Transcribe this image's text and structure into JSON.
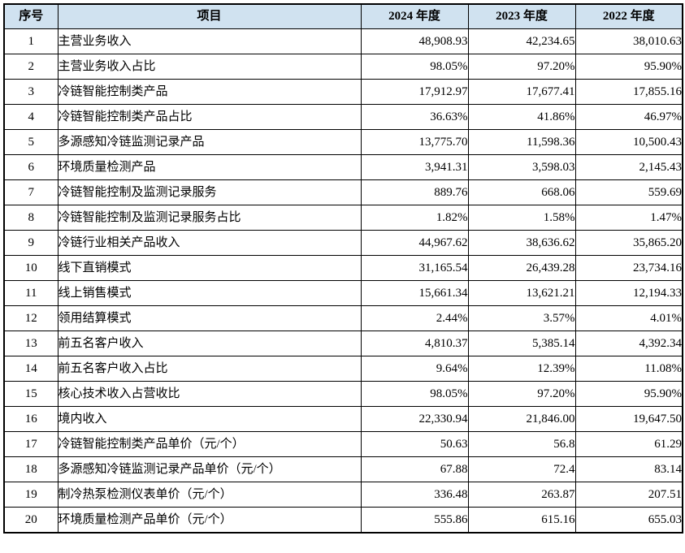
{
  "table": {
    "columns": [
      "序号",
      "项目",
      "2024 年度",
      "2023 年度",
      "2022 年度"
    ],
    "rows": [
      {
        "no": "1",
        "item": "主营业务收入",
        "y2024": "48,908.93",
        "y2023": "42,234.65",
        "y2022": "38,010.63"
      },
      {
        "no": "2",
        "item": "主营业务收入占比",
        "y2024": "98.05%",
        "y2023": "97.20%",
        "y2022": "95.90%"
      },
      {
        "no": "3",
        "item": "冷链智能控制类产品",
        "y2024": "17,912.97",
        "y2023": "17,677.41",
        "y2022": "17,855.16"
      },
      {
        "no": "4",
        "item": "冷链智能控制类产品占比",
        "y2024": "36.63%",
        "y2023": "41.86%",
        "y2022": "46.97%"
      },
      {
        "no": "5",
        "item": "多源感知冷链监测记录产品",
        "y2024": "13,775.70",
        "y2023": "11,598.36",
        "y2022": "10,500.43"
      },
      {
        "no": "6",
        "item": "环境质量检测产品",
        "y2024": "3,941.31",
        "y2023": "3,598.03",
        "y2022": "2,145.43"
      },
      {
        "no": "7",
        "item": "冷链智能控制及监测记录服务",
        "y2024": "889.76",
        "y2023": "668.06",
        "y2022": "559.69"
      },
      {
        "no": "8",
        "item": "冷链智能控制及监测记录服务占比",
        "y2024": "1.82%",
        "y2023": "1.58%",
        "y2022": "1.47%"
      },
      {
        "no": "9",
        "item": "冷链行业相关产品收入",
        "y2024": "44,967.62",
        "y2023": "38,636.62",
        "y2022": "35,865.20"
      },
      {
        "no": "10",
        "item": "线下直销模式",
        "y2024": "31,165.54",
        "y2023": "26,439.28",
        "y2022": "23,734.16"
      },
      {
        "no": "11",
        "item": "线上销售模式",
        "y2024": "15,661.34",
        "y2023": "13,621.21",
        "y2022": "12,194.33"
      },
      {
        "no": "12",
        "item": "领用结算模式",
        "y2024": "2.44%",
        "y2023": "3.57%",
        "y2022": "4.01%"
      },
      {
        "no": "13",
        "item": "前五名客户收入",
        "y2024": "4,810.37",
        "y2023": "5,385.14",
        "y2022": "4,392.34"
      },
      {
        "no": "14",
        "item": "前五名客户收入占比",
        "y2024": "9.64%",
        "y2023": "12.39%",
        "y2022": "11.08%"
      },
      {
        "no": "15",
        "item": "核心技术收入占营收比",
        "y2024": "98.05%",
        "y2023": "97.20%",
        "y2022": "95.90%"
      },
      {
        "no": "16",
        "item": "境内收入",
        "y2024": "22,330.94",
        "y2023": "21,846.00",
        "y2022": "19,647.50"
      },
      {
        "no": "17",
        "item": "冷链智能控制类产品单价（元/个）",
        "y2024": "50.63",
        "y2023": "56.8",
        "y2022": "61.29"
      },
      {
        "no": "18",
        "item": "多源感知冷链监测记录产品单价（元/个）",
        "y2024": "67.88",
        "y2023": "72.4",
        "y2022": "83.14"
      },
      {
        "no": "19",
        "item": "制冷热泵检测仪表单价（元/个）",
        "y2024": "336.48",
        "y2023": "263.87",
        "y2022": "207.51"
      },
      {
        "no": "20",
        "item": "环境质量检测产品单价（元/个）",
        "y2024": "555.86",
        "y2023": "615.16",
        "y2022": "655.03"
      }
    ],
    "colors": {
      "header_bg": "#d0e2f0",
      "border": "#000000",
      "text": "#000000",
      "row_bg": "#ffffff"
    }
  }
}
